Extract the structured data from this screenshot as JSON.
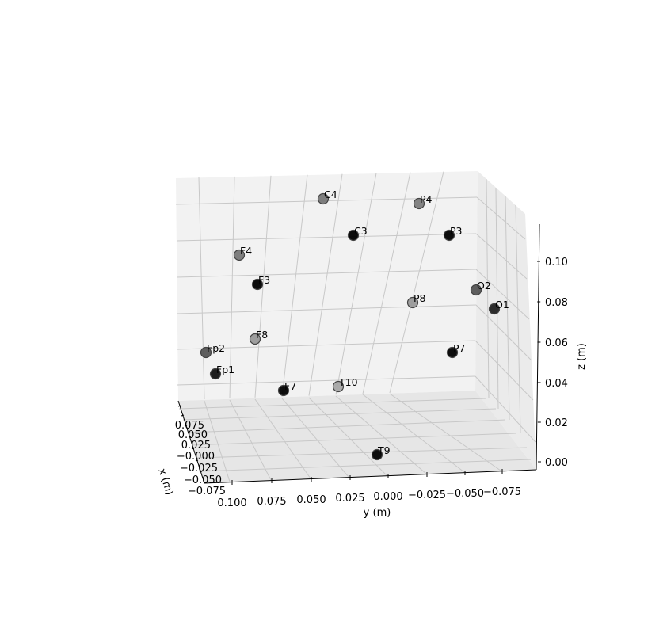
{
  "chart_data": {
    "type": "scatter",
    "title": "",
    "xlabel": "x (m)",
    "ylabel": "y (m)",
    "zlabel": "z (m)",
    "x_ticks": [
      "0.075",
      "0.050",
      "0.025",
      "−0.000",
      "−0.025",
      "−0.050",
      "−0.075"
    ],
    "y_ticks": [
      "0.100",
      "0.075",
      "0.050",
      "0.025",
      "0.000",
      "−0.025",
      "−0.050",
      "−0.075"
    ],
    "z_ticks": [
      "0.00",
      "0.02",
      "0.04",
      "0.06",
      "0.08",
      "0.10"
    ],
    "grid": true,
    "points": [
      {
        "label": "C4",
        "shade": "#777777"
      },
      {
        "label": "P4",
        "shade": "#7c7c7c"
      },
      {
        "label": "C3",
        "shade": "#000000"
      },
      {
        "label": "P3",
        "shade": "#000000"
      },
      {
        "label": "F4",
        "shade": "#777777"
      },
      {
        "label": "F3",
        "shade": "#000000"
      },
      {
        "label": "O2",
        "shade": "#555555"
      },
      {
        "label": "P8",
        "shade": "#999999"
      },
      {
        "label": "O1",
        "shade": "#222222"
      },
      {
        "label": "Fp2",
        "shade": "#555555"
      },
      {
        "label": "F8",
        "shade": "#999999"
      },
      {
        "label": "P7",
        "shade": "#000000"
      },
      {
        "label": "Fp1",
        "shade": "#111111"
      },
      {
        "label": "F7",
        "shade": "#000000"
      },
      {
        "label": "T10",
        "shade": "#a5a5a5"
      },
      {
        "label": "T9",
        "shade": "#000000"
      }
    ]
  }
}
